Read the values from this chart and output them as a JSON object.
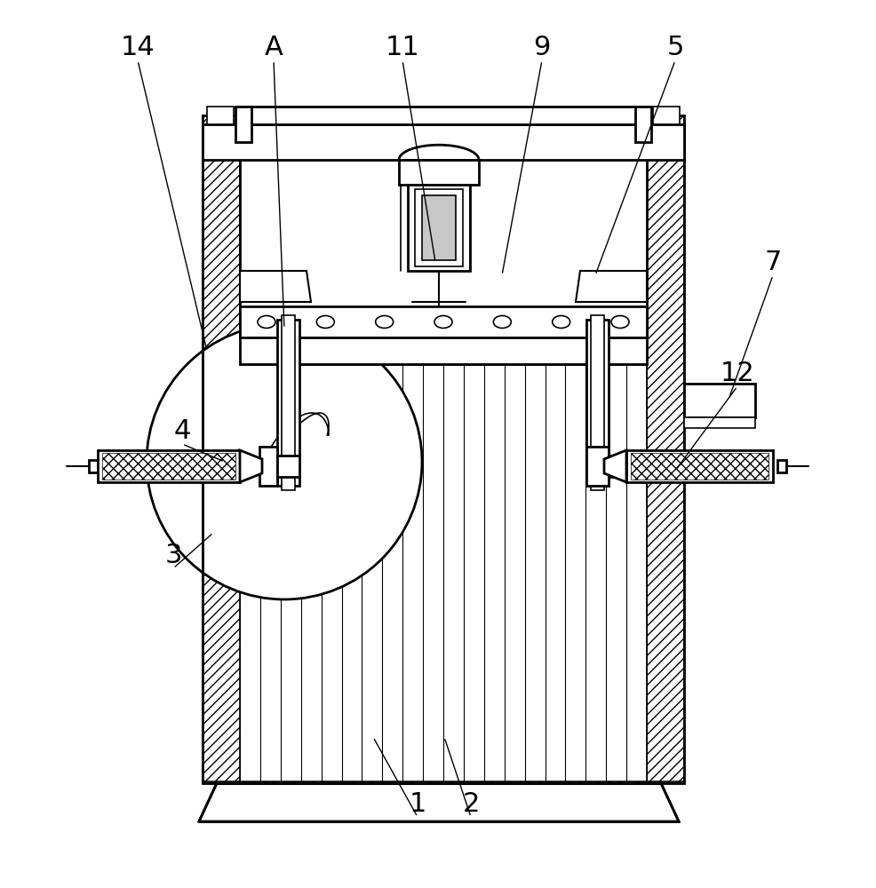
{
  "bg": "#ffffff",
  "lc": "#000000",
  "label_fontsize": 22,
  "label_data": [
    [
      "14",
      155,
      68,
      233,
      395
    ],
    [
      "A",
      308,
      68,
      320,
      370
    ],
    [
      "11",
      453,
      68,
      490,
      295
    ],
    [
      "9",
      610,
      68,
      565,
      310
    ],
    [
      "5",
      760,
      68,
      670,
      310
    ],
    [
      "7",
      870,
      310,
      820,
      450
    ],
    [
      "12",
      830,
      435,
      760,
      530
    ],
    [
      "4",
      205,
      500,
      253,
      520
    ],
    [
      "3",
      195,
      640,
      240,
      600
    ],
    [
      "2",
      530,
      920,
      500,
      830
    ],
    [
      "1",
      470,
      920,
      420,
      830
    ]
  ]
}
